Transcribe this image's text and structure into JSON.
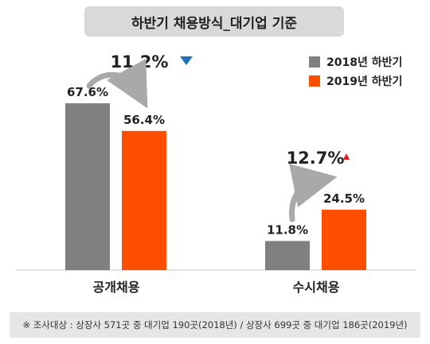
{
  "chart_data": {
    "type": "bar",
    "title": "하반기 채용방식_대기업 기준",
    "categories": [
      "공개채용",
      "수시채용"
    ],
    "series": [
      {
        "name": "2018년 하반기",
        "color": "#808080",
        "values": [
          67.6,
          11.8
        ],
        "labels": [
          "67.6%",
          "11.8%"
        ]
      },
      {
        "name": "2019년 하반기",
        "color": "#fe4f00",
        "values": [
          56.4,
          24.5
        ],
        "labels": [
          "56.4%",
          "24.5%"
        ]
      }
    ],
    "changes": [
      {
        "category": "공개채용",
        "label": "11.2%",
        "direction": "down",
        "color": "#1e6fc0"
      },
      {
        "category": "수시채용",
        "label": "12.7%",
        "direction": "up",
        "color": "#e11b1b"
      }
    ],
    "ylim": [
      0,
      80
    ],
    "grid": false,
    "legend_position": "top-right"
  },
  "footnote": "※ 조사대상 : 상장사 571곳 중 대기업 190곳(2018년) / 상장사 699곳 중 대기업 186곳(2019년)"
}
